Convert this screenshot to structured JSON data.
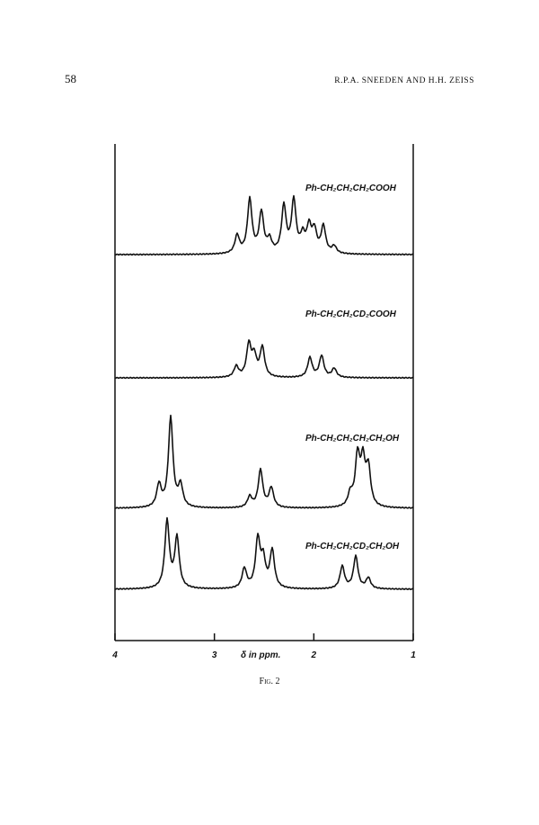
{
  "header": {
    "page_number": "58",
    "authors": "R.P.A. SNEEDEN AND H.H. ZEISS"
  },
  "figure": {
    "spectra": [
      {
        "label": "Ph-CH₂CH₂CH₂COOH"
      },
      {
        "label": "Ph-CH₂CH₂CD₂COOH"
      },
      {
        "label": "Ph-CH₂CH₂CH₂CH₂OH"
      },
      {
        "label": "Ph-CH₂CH₂CD₂CH₂OH"
      }
    ],
    "axis": {
      "label": "δ in ppm.",
      "xlim": [
        4,
        1
      ],
      "xticks": [
        4,
        3,
        2,
        1
      ]
    },
    "caption": "Fig. 2"
  }
}
